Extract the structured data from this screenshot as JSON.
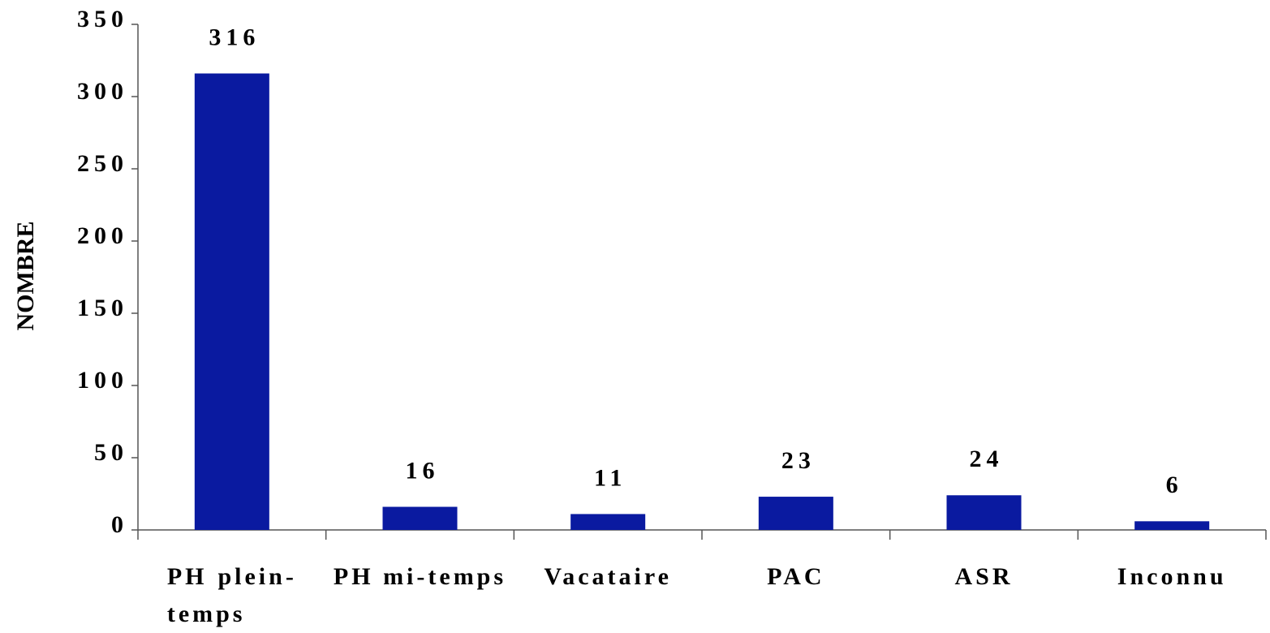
{
  "chart_data": {
    "type": "bar",
    "y_label": "NOMBRE",
    "categories": [
      "PH plein-temps",
      "PH mi-temps",
      "Vacataire",
      "PAC",
      "ASR",
      "Inconnu"
    ],
    "values": [
      316,
      16,
      11,
      23,
      24,
      6
    ],
    "color": "#0a1aa0",
    "ylim": [
      0,
      350
    ],
    "yticks": [
      0,
      50,
      100,
      150,
      200,
      250,
      300,
      350
    ],
    "grid": false
  }
}
